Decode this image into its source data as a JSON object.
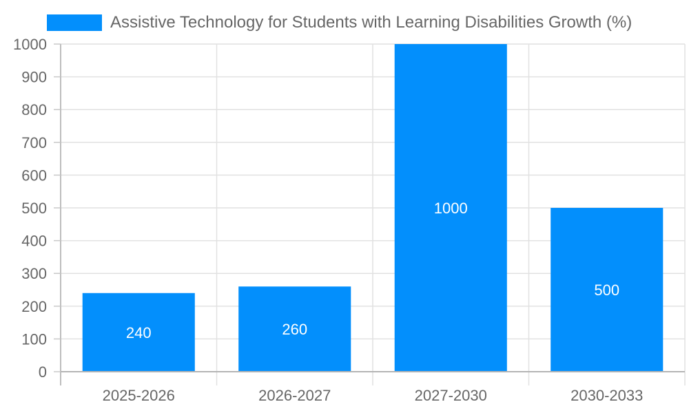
{
  "chart_data": {
    "type": "bar",
    "title": "",
    "legend": [
      "Assistive Technology for Students with Learning Disabilities Growth (%)"
    ],
    "legend_position": "top",
    "categories": [
      "2025-2026",
      "2026-2027",
      "2027-2030",
      "2030-2033"
    ],
    "series": [
      {
        "name": "Assistive Technology for Students with Learning Disabilities Growth (%)",
        "values": [
          240,
          260,
          1000,
          500
        ],
        "color": "#038ffc"
      }
    ],
    "data_labels": [
      "240",
      "260",
      "1000",
      "500"
    ],
    "xlabel": "",
    "ylabel": "",
    "ylim": [
      0,
      1000
    ],
    "yticks": [
      "0",
      "100",
      "200",
      "300",
      "400",
      "500",
      "600",
      "700",
      "800",
      "900",
      "1000"
    ],
    "grid": true
  },
  "legend": {
    "label": "Assistive Technology for Students with Learning Disabilities Growth (%)",
    "color": "#038ffc"
  }
}
